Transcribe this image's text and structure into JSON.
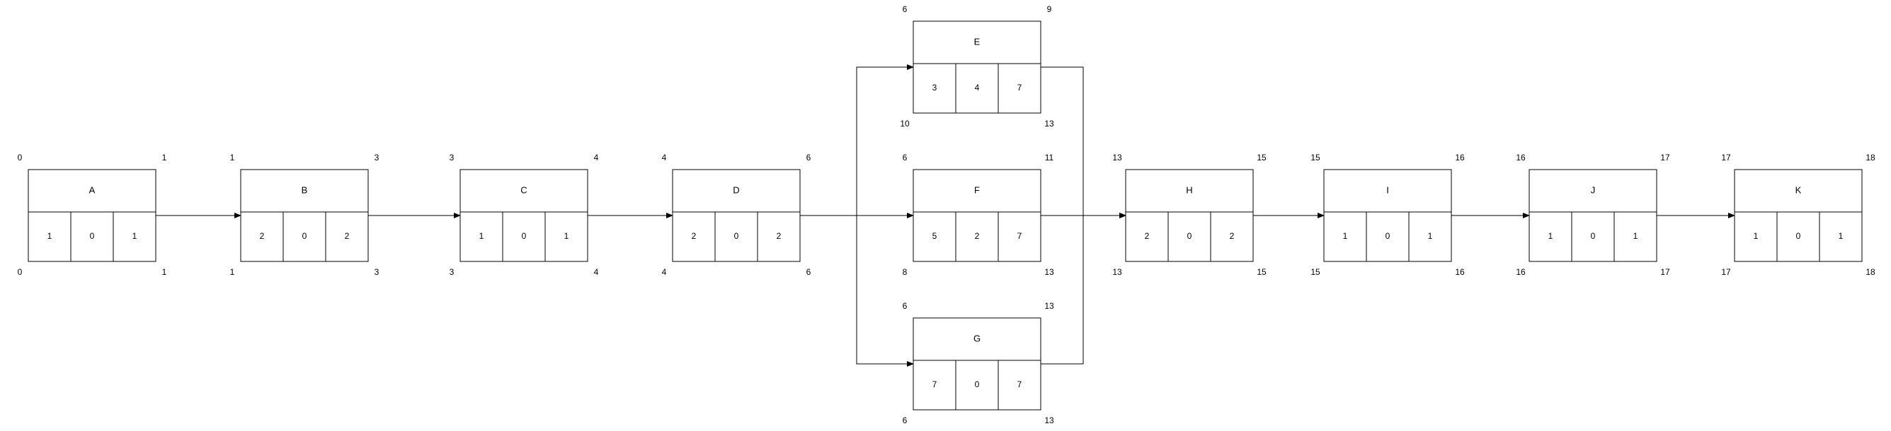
{
  "diagram": {
    "colors": {
      "stroke": "#000000",
      "background": "#ffffff",
      "text": "#000000"
    },
    "nodes": [
      {
        "id": "A",
        "name": "A",
        "duration": "1",
        "float": "0",
        "duration2": "1",
        "es": "0",
        "ef": "1",
        "ls": "0",
        "lf": "1"
      },
      {
        "id": "B",
        "name": "B",
        "duration": "2",
        "float": "0",
        "duration2": "2",
        "es": "1",
        "ef": "3",
        "ls": "1",
        "lf": "3"
      },
      {
        "id": "C",
        "name": "C",
        "duration": "1",
        "float": "0",
        "duration2": "1",
        "es": "3",
        "ef": "4",
        "ls": "3",
        "lf": "4"
      },
      {
        "id": "D",
        "name": "D",
        "duration": "2",
        "float": "0",
        "duration2": "2",
        "es": "4",
        "ef": "6",
        "ls": "4",
        "lf": "6"
      },
      {
        "id": "E",
        "name": "E",
        "duration": "3",
        "float": "4",
        "duration2": "7",
        "es": "6",
        "ef": "9",
        "ls": "10",
        "lf": "13"
      },
      {
        "id": "F",
        "name": "F",
        "duration": "5",
        "float": "2",
        "duration2": "7",
        "es": "6",
        "ef": "11",
        "ls": "8",
        "lf": "13"
      },
      {
        "id": "G",
        "name": "G",
        "duration": "7",
        "float": "0",
        "duration2": "7",
        "es": "6",
        "ef": "13",
        "ls": "6",
        "lf": "13"
      },
      {
        "id": "H",
        "name": "H",
        "duration": "2",
        "float": "0",
        "duration2": "2",
        "es": "13",
        "ef": "15",
        "ls": "13",
        "lf": "15"
      },
      {
        "id": "I",
        "name": "I",
        "duration": "1",
        "float": "0",
        "duration2": "1",
        "es": "15",
        "ef": "16",
        "ls": "15",
        "lf": "16"
      },
      {
        "id": "J",
        "name": "J",
        "duration": "1",
        "float": "0",
        "duration2": "1",
        "es": "16",
        "ef": "17",
        "ls": "16",
        "lf": "17"
      },
      {
        "id": "K",
        "name": "K",
        "duration": "1",
        "float": "0",
        "duration2": "1",
        "es": "17",
        "ef": "18",
        "ls": "17",
        "lf": "18"
      }
    ],
    "edges": [
      {
        "from": "A",
        "to": "B"
      },
      {
        "from": "B",
        "to": "C"
      },
      {
        "from": "C",
        "to": "D"
      },
      {
        "from": "D",
        "to": "E"
      },
      {
        "from": "D",
        "to": "F"
      },
      {
        "from": "D",
        "to": "G"
      },
      {
        "from": "E",
        "to": "H"
      },
      {
        "from": "F",
        "to": "H"
      },
      {
        "from": "G",
        "to": "H"
      },
      {
        "from": "H",
        "to": "I"
      },
      {
        "from": "I",
        "to": "J"
      },
      {
        "from": "J",
        "to": "K"
      }
    ]
  }
}
